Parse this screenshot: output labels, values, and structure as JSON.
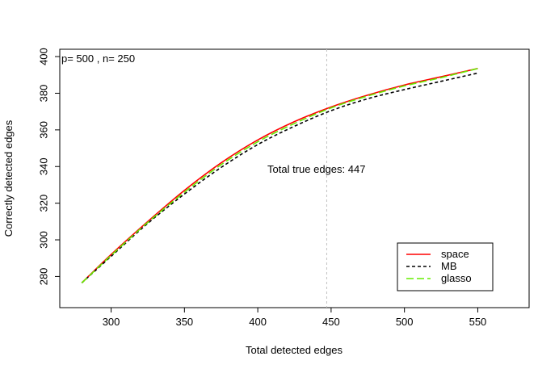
{
  "chart_data": {
    "type": "line",
    "title": "",
    "xlabel": "Total detected edges",
    "ylabel": "Correctly detected edges",
    "xlim": [
      265,
      585
    ],
    "ylim": [
      263,
      404
    ],
    "xticks": [
      300,
      350,
      400,
      450,
      500,
      550
    ],
    "yticks": [
      280,
      300,
      320,
      340,
      360,
      380,
      400
    ],
    "grid": false,
    "legend_position": "bottom-right",
    "annotations": {
      "top_left": "p= 500 , n= 250",
      "true_edges": "Total true edges: 447"
    },
    "vline": {
      "x": 447,
      "color": "#c0c0c0"
    },
    "series": [
      {
        "name": "space",
        "color": "#ff0000",
        "dash": "solid",
        "x": [
          280,
          300,
          325,
          350,
          375,
          400,
          425,
          450,
          475,
          500,
          525,
          550
        ],
        "y": [
          276.5,
          292,
          310,
          327,
          342,
          354.5,
          364.5,
          372.5,
          379,
          384.5,
          389,
          393.5
        ]
      },
      {
        "name": "MB",
        "color": "#000000",
        "dash": "dashed",
        "x": [
          280,
          300,
          325,
          350,
          375,
          400,
          425,
          450,
          475,
          500,
          525,
          550
        ],
        "y": [
          276.5,
          291,
          309,
          325,
          339.5,
          352,
          362,
          370.5,
          377,
          382,
          386.5,
          391
        ]
      },
      {
        "name": "glasso",
        "color": "#66ee00",
        "dash": "longdash",
        "x": [
          280,
          300,
          325,
          350,
          375,
          400,
          425,
          450,
          475,
          500,
          525,
          550
        ],
        "y": [
          276.5,
          291.5,
          309.5,
          326,
          341,
          353.5,
          363.5,
          372,
          378.5,
          384,
          388.5,
          393.5
        ]
      }
    ]
  }
}
